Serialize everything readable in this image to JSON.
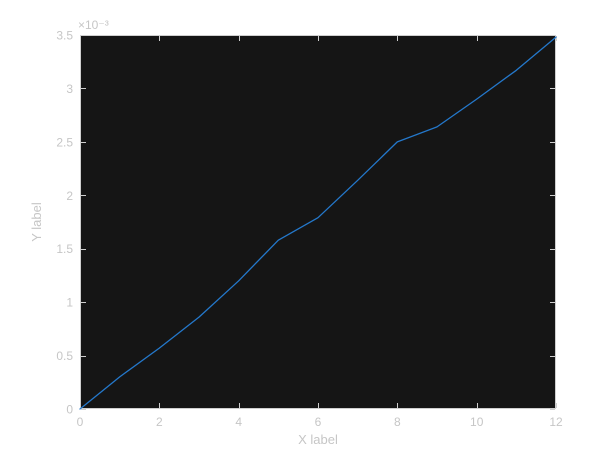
{
  "figure": {
    "background": "#ffffff",
    "plot_background": "#151515",
    "border_color": "#cfcfcf",
    "tick_color": "#cfcfcf",
    "label_color": "#c6c6c6"
  },
  "chart_data": {
    "type": "line",
    "title": "",
    "xlabel": "X label",
    "ylabel": "Y label",
    "y_axis_multiplier": "×10⁻³",
    "x": [
      0,
      1,
      2,
      3,
      4,
      5,
      6,
      7,
      8,
      9,
      10,
      11,
      12
    ],
    "y": [
      0.0,
      0.0003,
      0.00057,
      0.00086,
      0.0012,
      0.00158,
      0.00179,
      0.00214,
      0.0025,
      0.00264,
      0.0029,
      0.00317,
      0.00348
    ],
    "xlim": [
      0,
      12
    ],
    "ylim": [
      0,
      0.0035
    ],
    "x_tick_values": [
      0,
      2,
      4,
      6,
      8,
      10,
      12
    ],
    "x_tick_labels": [
      "0",
      "2",
      "4",
      "6",
      "8",
      "10",
      "12"
    ],
    "y_tick_values": [
      0,
      0.0005,
      0.001,
      0.0015,
      0.002,
      0.0025,
      0.003,
      0.0035
    ],
    "y_tick_labels": [
      "0",
      "0.5",
      "1",
      "1.5",
      "2",
      "2.5",
      "3",
      "3.5"
    ],
    "grid": false,
    "legend": null,
    "series_color": "#2478cb",
    "tick_direction": "in",
    "box": true
  }
}
